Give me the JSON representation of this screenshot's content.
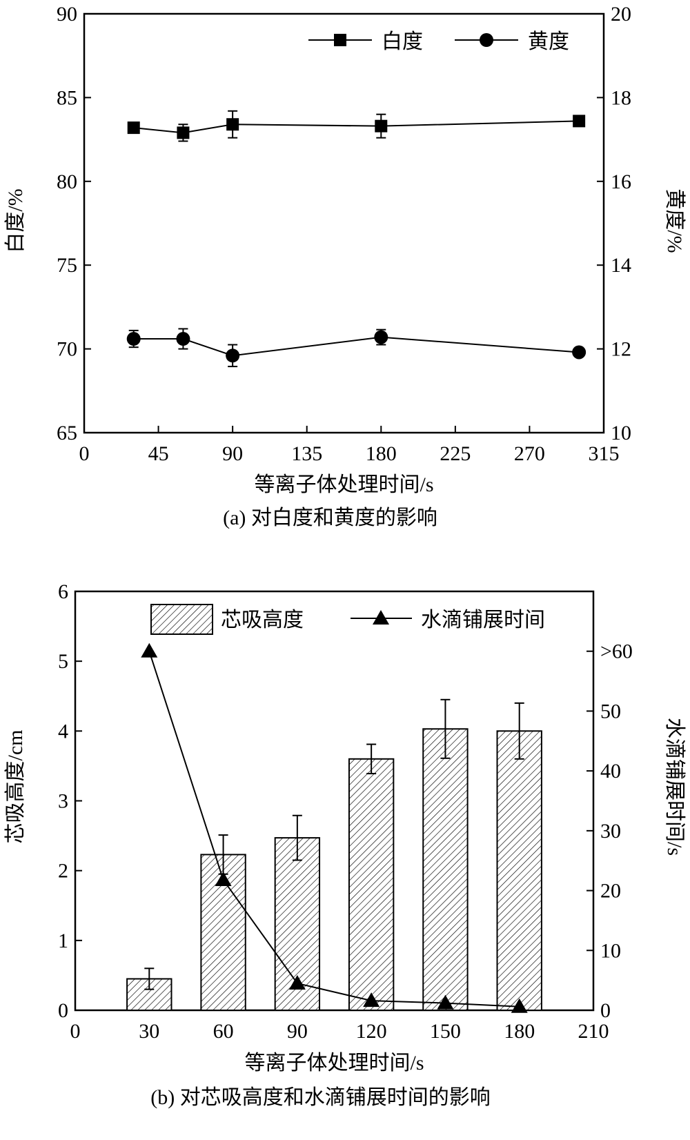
{
  "chart_data": [
    {
      "type": "line",
      "caption": "(a) 对白度和黄度的影响",
      "xlabel": "等离子体处理时间/s",
      "ylabel": "白度/%",
      "ylabel_right": "黄度/%",
      "xlim": [
        0,
        315
      ],
      "ylim": [
        65,
        90
      ],
      "ylim_right": [
        10,
        20
      ],
      "xticks": [
        "0",
        "45",
        "90",
        "135",
        "180",
        "225",
        "270",
        "315"
      ],
      "yticks": [
        "65",
        "70",
        "75",
        "80",
        "85",
        "90"
      ],
      "yticks_right": [
        "10",
        "12",
        "14",
        "16",
        "18",
        "20"
      ],
      "legend_placement": "top-right",
      "x": [
        30,
        60,
        90,
        180,
        300
      ],
      "series": [
        {
          "name": "白度",
          "axis": "left",
          "marker": "square",
          "values": [
            83.2,
            82.9,
            83.4,
            83.3,
            83.6
          ],
          "errors": [
            0,
            0.5,
            0.8,
            0.7,
            0
          ]
        },
        {
          "name": "黄度",
          "axis": "right",
          "marker": "circle",
          "values": [
            12.24,
            12.24,
            11.84,
            12.28,
            11.92
          ],
          "errors": [
            0.2,
            0.24,
            0.26,
            0.18,
            0
          ]
        }
      ]
    },
    {
      "type": "bar",
      "caption": "(b) 对芯吸高度和水滴铺展时间的影响",
      "xlabel": "等离子体处理时间/s",
      "ylabel": "芯吸高度/cm",
      "ylabel_right": "水滴铺展时间/s",
      "xlim": [
        0,
        210
      ],
      "ylim": [
        0,
        6
      ],
      "ylim_right": [
        0,
        70
      ],
      "xticks": [
        "0",
        "30",
        "60",
        "90",
        "120",
        "150",
        "180",
        "210"
      ],
      "yticks": [
        "0",
        "1",
        "2",
        "3",
        "4",
        "5",
        "6"
      ],
      "yticks_right": [
        {
          "v": 0,
          "label": "0"
        },
        {
          "v": 10,
          "label": "10"
        },
        {
          "v": 20,
          "label": "20"
        },
        {
          "v": 30,
          "label": "30"
        },
        {
          "v": 40,
          "label": "40"
        },
        {
          "v": 50,
          "label": "50"
        },
        {
          "v": 60,
          "label": ">60"
        }
      ],
      "legend_placement": "top-right",
      "x": [
        30,
        60,
        90,
        120,
        150,
        180
      ],
      "series": [
        {
          "name": "芯吸高度",
          "kind": "bar",
          "axis": "left",
          "values": [
            0.45,
            2.23,
            2.47,
            3.6,
            4.03,
            4.0
          ],
          "errors": [
            0.15,
            0.28,
            0.32,
            0.21,
            0.42,
            0.4
          ]
        },
        {
          "name": "水滴铺展时间",
          "kind": "line",
          "axis": "right",
          "marker": "triangle",
          "values": [
            60,
            21.8,
            4.5,
            1.6,
            1.2,
            0.6
          ]
        }
      ]
    }
  ]
}
